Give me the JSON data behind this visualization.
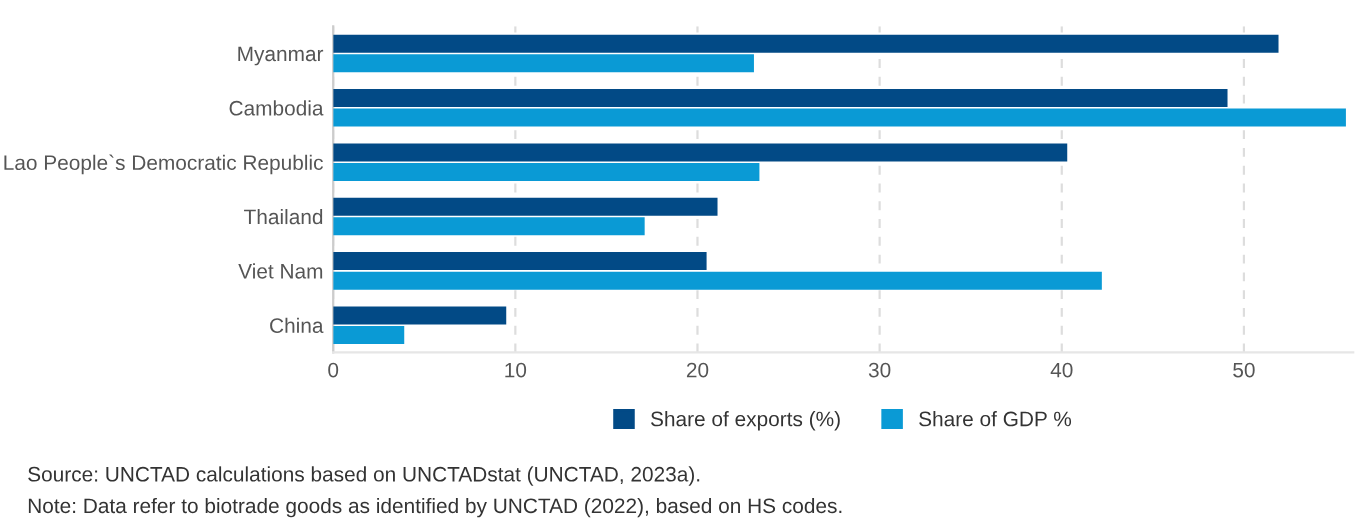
{
  "chart_data": {
    "type": "bar",
    "orientation": "horizontal",
    "categories": [
      "Myanmar",
      "Cambodia",
      "Lao People`s Democratic Republic",
      "Thailand",
      "Viet Nam",
      "China"
    ],
    "series": [
      {
        "name": "Share of exports (%)",
        "color": "#024a86",
        "values": [
          51.9,
          49.1,
          40.3,
          21.1,
          20.5,
          9.5
        ]
      },
      {
        "name": "Share of GDP %",
        "color": "#0a9ad5",
        "values": [
          23.1,
          55.6,
          23.4,
          17.1,
          42.2,
          3.9
        ]
      }
    ],
    "xlim": [
      0,
      56
    ],
    "xticks": [
      0,
      10,
      20,
      30,
      40,
      50
    ],
    "grid": "x",
    "legend": "bottom",
    "annotations": [
      "Source: UNCTAD calculations based on UNCTADstat (UNCTAD, 2023a).",
      "Note: Data refer to biotrade goods as identified by UNCTAD (2022), based on HS codes."
    ]
  }
}
